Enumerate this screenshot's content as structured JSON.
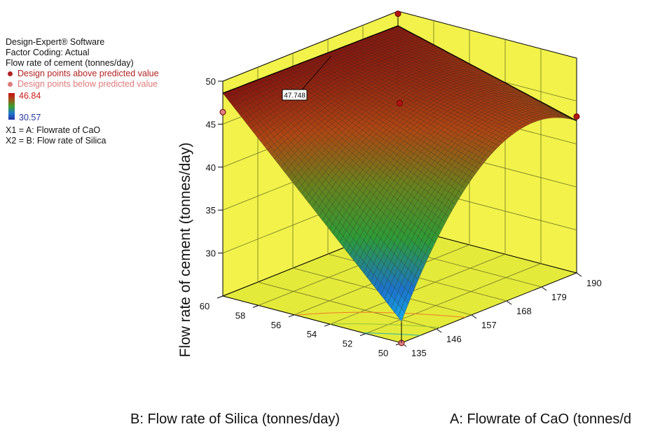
{
  "legend": {
    "software": "Design-Expert® Software",
    "coding": "Factor Coding: Actual",
    "response": "Flow rate of cement (tonnes/day)",
    "above_label": "Design points above predicted value",
    "below_label": "Design points below predicted value",
    "above_color": "#b22222",
    "below_color": "#e07a7a",
    "color_max": "46.84",
    "color_min": "30.57",
    "x1": "X1 = A: Flowrate of CaO",
    "x2": "X2 = B: Flow rate of Silica"
  },
  "chart_data": {
    "type": "surface",
    "response_label": "Flow rate of cement (tonnes/day)",
    "axes": {
      "A": {
        "label": "A: Flowrate of CaO (tonnes/d",
        "range": [
          135,
          190
        ],
        "ticks": [
          "135",
          "146",
          "157",
          "168",
          "179",
          "190"
        ]
      },
      "B": {
        "label": "B: Flow rate of Silica (tonnes/day)",
        "range": [
          50,
          60
        ],
        "ticks": [
          "50",
          "52",
          "54",
          "56",
          "58",
          "60"
        ]
      },
      "Z": {
        "label": "Flow rate of cement (tonnes/day)",
        "range": [
          25,
          50
        ],
        "ticks": [
          "30",
          "35",
          "40",
          "45",
          "50"
        ]
      }
    },
    "surface_corners": [
      {
        "A": 135,
        "B": 50,
        "Z": 27.5
      },
      {
        "A": 135,
        "B": 60,
        "Z": 48.6
      },
      {
        "A": 190,
        "B": 50,
        "Z": 42.7
      },
      {
        "A": 190,
        "B": 60,
        "Z": 48.3
      }
    ],
    "annotation": "47.748",
    "design_points": [
      {
        "A": 135,
        "B": 50,
        "Z": 25.0,
        "position": "below"
      },
      {
        "A": 135,
        "B": 60,
        "Z": 46.4,
        "position": "below"
      },
      {
        "A": 190,
        "B": 50,
        "Z": 43.2,
        "position": "above"
      },
      {
        "A": 162.5,
        "B": 55,
        "Z": 46.1,
        "position": "above"
      },
      {
        "A": 190,
        "B": 60,
        "Z": 49.7,
        "position": "above"
      }
    ],
    "colors": {
      "wall": "#f2f24a",
      "floor": "#e4ea3a",
      "grid": "#6f7325",
      "surface_high": "#b01e14",
      "surface_low": "#1a9bdc"
    }
  }
}
